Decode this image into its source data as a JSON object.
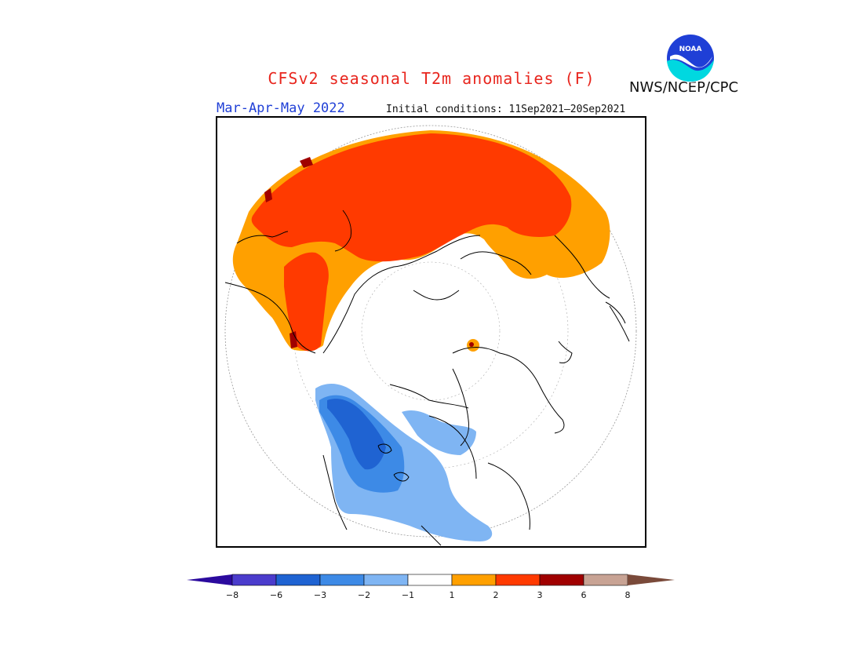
{
  "title": "CFSv2 seasonal T2m anomalies (F)",
  "season": "Mar-Apr-May 2022",
  "initial_conditions": "Initial conditions: 11Sep2021–20Sep2021",
  "agency": "NWS/NCEP/CPC",
  "logo_text": "NOAA",
  "colors": {
    "title": "#e8261e",
    "season": "#1f3fd6",
    "bins": [
      "#2b0a9e",
      "#4b3ccc",
      "#1f63d2",
      "#3d8ae6",
      "#7fb5f3",
      "#ffffff",
      "#ffa000",
      "#ff3a00",
      "#a00000",
      "#c8a394",
      "#7a4a3a"
    ]
  },
  "legend": {
    "ticks": [
      "−8",
      "−6",
      "−3",
      "−2",
      "−1",
      "1",
      "2",
      "3",
      "6",
      "8"
    ]
  }
}
